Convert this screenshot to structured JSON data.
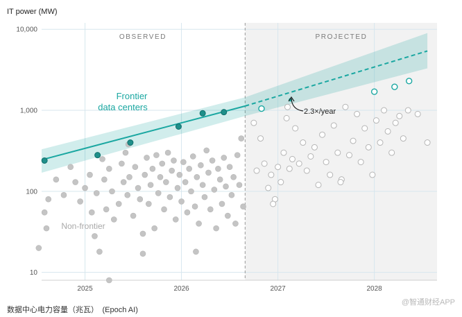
{
  "caption": "数据中心电力容量（兆瓦）　(Epoch AI)",
  "watermark": "@智通财经APP",
  "chart_data": {
    "type": "scatter",
    "ylabel": "IT power (MW)",
    "yscale": "log",
    "ylim": [
      8,
      12000
    ],
    "xlim": [
      2024.55,
      2028.65
    ],
    "yticks": [
      {
        "value": 10,
        "label": "10"
      },
      {
        "value": 100,
        "label": "100"
      },
      {
        "value": 1000,
        "label": "1,000"
      },
      {
        "value": 10000,
        "label": "10,000"
      }
    ],
    "xticks": [
      {
        "value": 2025,
        "label": "2025"
      },
      {
        "value": 2026,
        "label": "2026"
      },
      {
        "value": 2027,
        "label": "2027"
      },
      {
        "value": 2028,
        "label": "2028"
      }
    ],
    "grid": true,
    "regions": [
      {
        "label": "OBSERVED",
        "from": 2024.55,
        "to": 2026.66
      },
      {
        "label": "PROJECTED",
        "from": 2026.66,
        "to": 2028.65
      }
    ],
    "divider_x": 2026.66,
    "annotations": {
      "frontier_label": [
        "Frontier",
        "data centers"
      ],
      "nonfrontier_label": "Non-frontier",
      "growth_label": "2.3×/year",
      "growth_point": {
        "x": 2027.13,
        "y": 1350
      }
    },
    "trend": {
      "name": "Frontier data centers",
      "color": "#1aa7a1",
      "observed_line": [
        {
          "x": 2024.55,
          "y": 245
        },
        {
          "x": 2026.66,
          "y": 1130
        }
      ],
      "projected_line": [
        {
          "x": 2026.66,
          "y": 1130
        },
        {
          "x": 2028.55,
          "y": 5400
        }
      ],
      "band_upper": [
        {
          "x": 2024.55,
          "y": 330
        },
        {
          "x": 2026.66,
          "y": 1450
        },
        {
          "x": 2028.55,
          "y": 9000
        }
      ],
      "band_lower": [
        {
          "x": 2024.55,
          "y": 170
        },
        {
          "x": 2026.66,
          "y": 850
        },
        {
          "x": 2028.55,
          "y": 3300
        }
      ]
    },
    "series": [
      {
        "name": "Frontier data centers",
        "style": "filled",
        "color": "#1f8f8a",
        "points": [
          {
            "x": 2024.58,
            "y": 240
          },
          {
            "x": 2025.13,
            "y": 280
          },
          {
            "x": 2025.47,
            "y": 400
          },
          {
            "x": 2025.97,
            "y": 630
          },
          {
            "x": 2026.22,
            "y": 920
          },
          {
            "x": 2026.44,
            "y": 950
          }
        ]
      },
      {
        "name": "Frontier data centers (projected)",
        "style": "hollow",
        "color": "#1aa7a1",
        "points": [
          {
            "x": 2026.83,
            "y": 1050
          },
          {
            "x": 2028.0,
            "y": 1700
          },
          {
            "x": 2028.21,
            "y": 1950
          },
          {
            "x": 2028.36,
            "y": 2300
          }
        ]
      },
      {
        "name": "Non-frontier",
        "style": "filled",
        "color": "#c4c4c4",
        "points": [
          {
            "x": 2024.52,
            "y": 20
          },
          {
            "x": 2024.58,
            "y": 55
          },
          {
            "x": 2024.6,
            "y": 35
          },
          {
            "x": 2024.62,
            "y": 80
          },
          {
            "x": 2024.7,
            "y": 140
          },
          {
            "x": 2024.78,
            "y": 90
          },
          {
            "x": 2024.85,
            "y": 200
          },
          {
            "x": 2024.9,
            "y": 130
          },
          {
            "x": 2024.95,
            "y": 75
          },
          {
            "x": 2025.0,
            "y": 110
          },
          {
            "x": 2025.05,
            "y": 160
          },
          {
            "x": 2025.07,
            "y": 55
          },
          {
            "x": 2025.1,
            "y": 28
          },
          {
            "x": 2025.12,
            "y": 95
          },
          {
            "x": 2025.15,
            "y": 18
          },
          {
            "x": 2025.18,
            "y": 250
          },
          {
            "x": 2025.2,
            "y": 140
          },
          {
            "x": 2025.22,
            "y": 60
          },
          {
            "x": 2025.25,
            "y": 190
          },
          {
            "x": 2025.28,
            "y": 100
          },
          {
            "x": 2025.3,
            "y": 45
          },
          {
            "x": 2025.35,
            "y": 70
          },
          {
            "x": 2025.38,
            "y": 220
          },
          {
            "x": 2025.4,
            "y": 130
          },
          {
            "x": 2025.42,
            "y": 300
          },
          {
            "x": 2025.44,
            "y": 90
          },
          {
            "x": 2025.46,
            "y": 150
          },
          {
            "x": 2025.5,
            "y": 50
          },
          {
            "x": 2025.52,
            "y": 200
          },
          {
            "x": 2025.55,
            "y": 110
          },
          {
            "x": 2025.57,
            "y": 80
          },
          {
            "x": 2025.6,
            "y": 30
          },
          {
            "x": 2025.62,
            "y": 160
          },
          {
            "x": 2025.64,
            "y": 260
          },
          {
            "x": 2025.66,
            "y": 70
          },
          {
            "x": 2025.68,
            "y": 120
          },
          {
            "x": 2025.7,
            "y": 190
          },
          {
            "x": 2025.72,
            "y": 35
          },
          {
            "x": 2025.74,
            "y": 280
          },
          {
            "x": 2025.76,
            "y": 95
          },
          {
            "x": 2025.78,
            "y": 150
          },
          {
            "x": 2025.8,
            "y": 220
          },
          {
            "x": 2025.82,
            "y": 60
          },
          {
            "x": 2025.84,
            "y": 130
          },
          {
            "x": 2025.86,
            "y": 300
          },
          {
            "x": 2025.88,
            "y": 85
          },
          {
            "x": 2025.9,
            "y": 180
          },
          {
            "x": 2025.92,
            "y": 240
          },
          {
            "x": 2025.94,
            "y": 45
          },
          {
            "x": 2025.96,
            "y": 110
          },
          {
            "x": 2025.98,
            "y": 160
          },
          {
            "x": 2026.0,
            "y": 75
          },
          {
            "x": 2026.02,
            "y": 230
          },
          {
            "x": 2026.04,
            "y": 130
          },
          {
            "x": 2026.06,
            "y": 55
          },
          {
            "x": 2026.08,
            "y": 190
          },
          {
            "x": 2026.1,
            "y": 100
          },
          {
            "x": 2026.12,
            "y": 270
          },
          {
            "x": 2026.14,
            "y": 65
          },
          {
            "x": 2026.16,
            "y": 150
          },
          {
            "x": 2026.18,
            "y": 40
          },
          {
            "x": 2026.2,
            "y": 210
          },
          {
            "x": 2026.22,
            "y": 120
          },
          {
            "x": 2026.24,
            "y": 85
          },
          {
            "x": 2026.26,
            "y": 320
          },
          {
            "x": 2026.28,
            "y": 170
          },
          {
            "x": 2026.3,
            "y": 60
          },
          {
            "x": 2026.32,
            "y": 240
          },
          {
            "x": 2026.34,
            "y": 105
          },
          {
            "x": 2026.36,
            "y": 35
          },
          {
            "x": 2026.38,
            "y": 190
          },
          {
            "x": 2026.4,
            "y": 140
          },
          {
            "x": 2026.42,
            "y": 70
          },
          {
            "x": 2026.44,
            "y": 260
          },
          {
            "x": 2026.46,
            "y": 115
          },
          {
            "x": 2026.48,
            "y": 50
          },
          {
            "x": 2026.5,
            "y": 200
          },
          {
            "x": 2026.52,
            "y": 90
          },
          {
            "x": 2026.54,
            "y": 150
          },
          {
            "x": 2026.56,
            "y": 40
          },
          {
            "x": 2026.58,
            "y": 280
          },
          {
            "x": 2026.6,
            "y": 120
          },
          {
            "x": 2026.62,
            "y": 450
          },
          {
            "x": 2026.64,
            "y": 65
          },
          {
            "x": 2025.25,
            "y": 8
          },
          {
            "x": 2025.6,
            "y": 17
          },
          {
            "x": 2026.15,
            "y": 18
          },
          {
            "x": 2025.45,
            "y": 380
          }
        ]
      },
      {
        "name": "Non-frontier (projected)",
        "style": "hollow",
        "color": "#b5b5b5",
        "points": [
          {
            "x": 2026.75,
            "y": 700
          },
          {
            "x": 2026.78,
            "y": 180
          },
          {
            "x": 2026.82,
            "y": 450
          },
          {
            "x": 2026.86,
            "y": 220
          },
          {
            "x": 2026.9,
            "y": 110
          },
          {
            "x": 2026.93,
            "y": 160
          },
          {
            "x": 2026.97,
            "y": 80
          },
          {
            "x": 2027.0,
            "y": 200
          },
          {
            "x": 2027.03,
            "y": 130
          },
          {
            "x": 2027.06,
            "y": 300
          },
          {
            "x": 2027.09,
            "y": 800
          },
          {
            "x": 2027.12,
            "y": 190
          },
          {
            "x": 2027.15,
            "y": 250
          },
          {
            "x": 2027.18,
            "y": 600
          },
          {
            "x": 2027.22,
            "y": 220
          },
          {
            "x": 2027.26,
            "y": 400
          },
          {
            "x": 2027.3,
            "y": 180
          },
          {
            "x": 2027.34,
            "y": 270
          },
          {
            "x": 2027.38,
            "y": 350
          },
          {
            "x": 2027.42,
            "y": 120
          },
          {
            "x": 2027.46,
            "y": 500
          },
          {
            "x": 2027.5,
            "y": 230
          },
          {
            "x": 2027.54,
            "y": 160
          },
          {
            "x": 2027.58,
            "y": 650
          },
          {
            "x": 2027.62,
            "y": 300
          },
          {
            "x": 2027.66,
            "y": 140
          },
          {
            "x": 2027.7,
            "y": 1100
          },
          {
            "x": 2027.74,
            "y": 280
          },
          {
            "x": 2027.78,
            "y": 420
          },
          {
            "x": 2027.82,
            "y": 900
          },
          {
            "x": 2027.86,
            "y": 230
          },
          {
            "x": 2027.9,
            "y": 600
          },
          {
            "x": 2027.94,
            "y": 350
          },
          {
            "x": 2027.98,
            "y": 160
          },
          {
            "x": 2028.02,
            "y": 750
          },
          {
            "x": 2028.06,
            "y": 400
          },
          {
            "x": 2028.1,
            "y": 1000
          },
          {
            "x": 2028.14,
            "y": 550
          },
          {
            "x": 2028.18,
            "y": 300
          },
          {
            "x": 2028.22,
            "y": 700
          },
          {
            "x": 2028.26,
            "y": 850
          },
          {
            "x": 2028.3,
            "y": 450
          },
          {
            "x": 2028.35,
            "y": 1000
          },
          {
            "x": 2028.45,
            "y": 900
          },
          {
            "x": 2028.55,
            "y": 400
          },
          {
            "x": 2026.95,
            "y": 70
          },
          {
            "x": 2027.1,
            "y": 1100
          },
          {
            "x": 2027.65,
            "y": 130
          }
        ]
      }
    ]
  }
}
